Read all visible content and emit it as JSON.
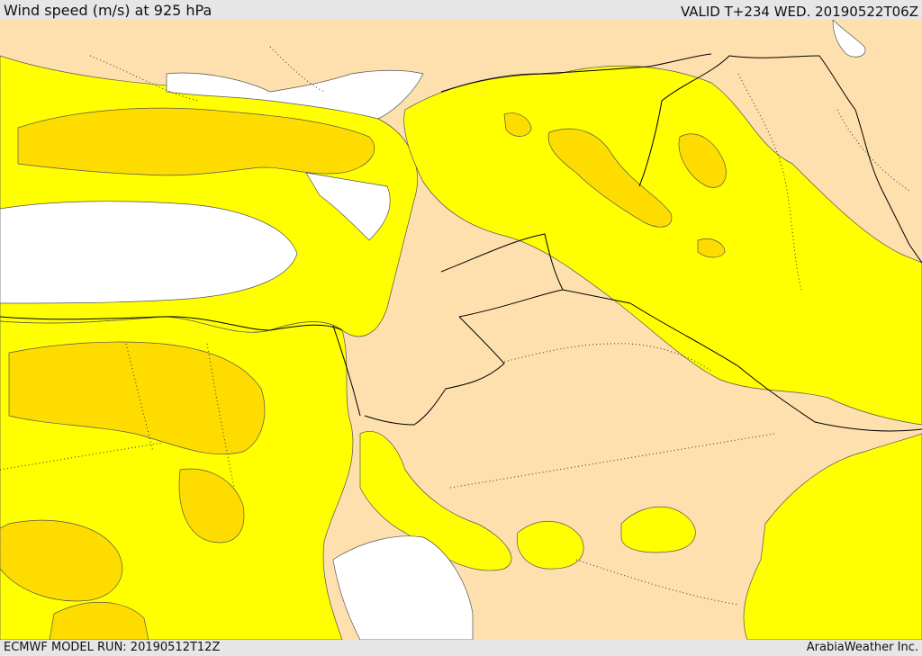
{
  "header": {
    "title": "Wind speed (m/s) at 925 hPa",
    "valid_time": "VALID T+234 WED. 20190522T06Z"
  },
  "footer": {
    "model_run": "ECMWF MODEL RUN: 20190512T12Z",
    "credit": "ArabiaWeather Inc."
  },
  "colors": {
    "land_low": "#fde0ad",
    "wind_mid": "#ffff00",
    "wind_high": "#fedc00",
    "no_data": "#ffffff",
    "background": "#e6e6e6"
  }
}
